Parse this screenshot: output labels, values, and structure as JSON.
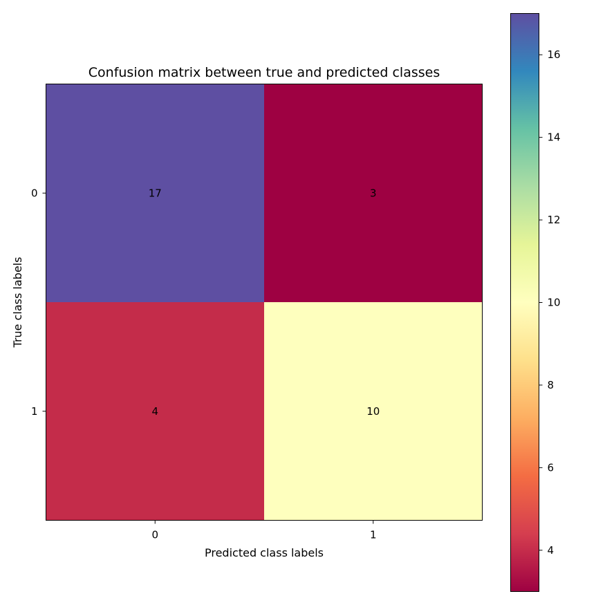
{
  "chart_data": {
    "type": "heatmap",
    "title": "Confusion matrix between true and predicted classes",
    "xlabel": "Predicted class labels",
    "ylabel": "True class labels",
    "x_categories": [
      "0",
      "1"
    ],
    "y_categories": [
      "0",
      "1"
    ],
    "values": [
      [
        17,
        3
      ],
      [
        4,
        10
      ]
    ],
    "colormap": "Spectral",
    "colorbar": {
      "min": 3,
      "max": 17,
      "ticks": [
        4,
        6,
        8,
        10,
        12,
        14,
        16
      ]
    },
    "colors": {
      "cell_0_0": "#5e4fa2",
      "cell_0_1": "#9e0142",
      "cell_1_0": "#c42c4a",
      "cell_1_1": "#feffbe"
    },
    "grid": false
  }
}
